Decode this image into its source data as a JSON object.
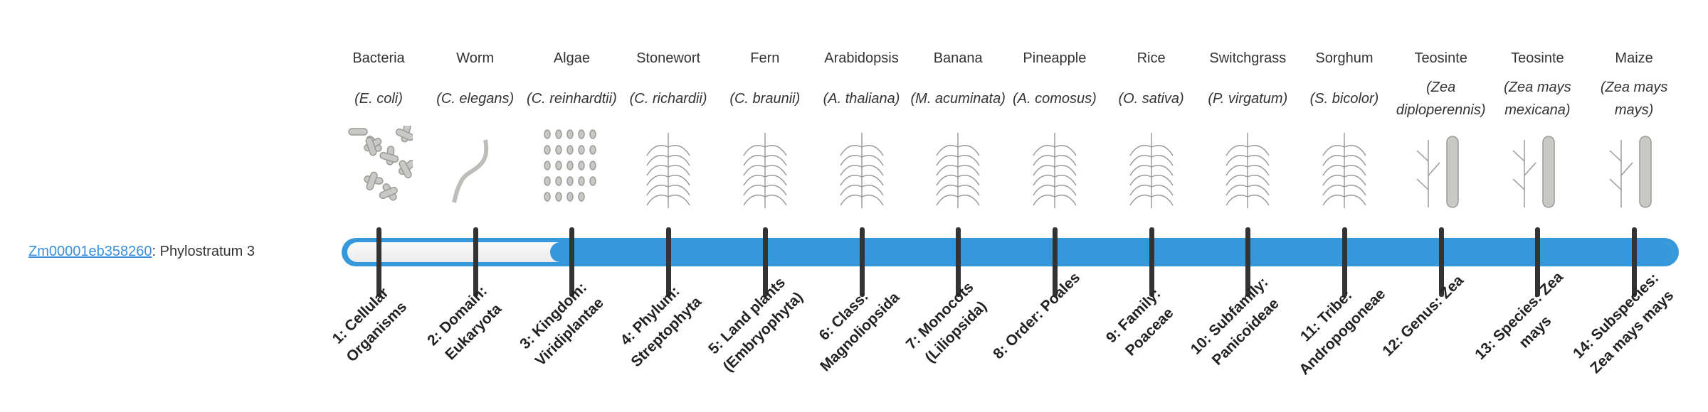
{
  "gene": {
    "id": "Zm00001eb358260",
    "suffix": ": Phylostratum 3"
  },
  "phylostratum": {
    "current": 3,
    "total": 14
  },
  "colors": {
    "bar": "#3598db",
    "track": "#f2f2f2",
    "tick": "#333333",
    "link": "#3a8fd8"
  },
  "organisms": [
    {
      "common": "Bacteria",
      "scientific": "(E. coli)",
      "rank": "1: Cellular Organisms",
      "icon": "bacteria-image"
    },
    {
      "common": "Worm",
      "scientific": "(C. elegans)",
      "rank": "2: Domain: Eukaryota",
      "icon": "worm-image"
    },
    {
      "common": "Algae",
      "scientific": "(C. reinhardtii)",
      "rank": "3: Kingdom: Viridiplantae",
      "icon": "algae-image"
    },
    {
      "common": "Stonewort",
      "scientific": "(C. richardii)",
      "rank": "4: Phylum: Streptophyta",
      "icon": "stonewort-image"
    },
    {
      "common": "Fern",
      "scientific": "(C. braunii)",
      "rank": "5: Land plants (Embryophyta)",
      "icon": "fern-image"
    },
    {
      "common": "Arabidopsis",
      "scientific": "(A. thaliana)",
      "rank": "6: Class: Magnoliopsida",
      "icon": "arabidopsis-image"
    },
    {
      "common": "Banana",
      "scientific": "(M. acuminata)",
      "rank": "7: Monocots (Liliopsida)",
      "icon": "banana-image"
    },
    {
      "common": "Pineapple",
      "scientific": "(A. comosus)",
      "rank": "8: Order: Poales",
      "icon": "pineapple-image"
    },
    {
      "common": "Rice",
      "scientific": "(O. sativa)",
      "rank": "9: Family: Poaceae",
      "icon": "rice-image"
    },
    {
      "common": "Switchgrass",
      "scientific": "(P. virgatum)",
      "rank": "10: Subfamily: Panicoideae",
      "icon": "switchgrass-image"
    },
    {
      "common": "Sorghum",
      "scientific": "(S. bicolor)",
      "rank": "11: Tribe: Andropogoneae",
      "icon": "sorghum-image"
    },
    {
      "common": "Teosinte",
      "scientific": "(Zea diploperennis)",
      "rank": "12: Genus: Zea",
      "icon": "teosinte-image"
    },
    {
      "common": "Teosinte",
      "scientific": "(Zea mays mexicana)",
      "rank": "13: Species: Zea mays",
      "icon": "teosinte-mexicana-image"
    },
    {
      "common": "Maize",
      "scientific": "(Zea mays mays)",
      "rank": "14: Subspecies: Zea mays mays",
      "icon": "maize-image"
    }
  ]
}
